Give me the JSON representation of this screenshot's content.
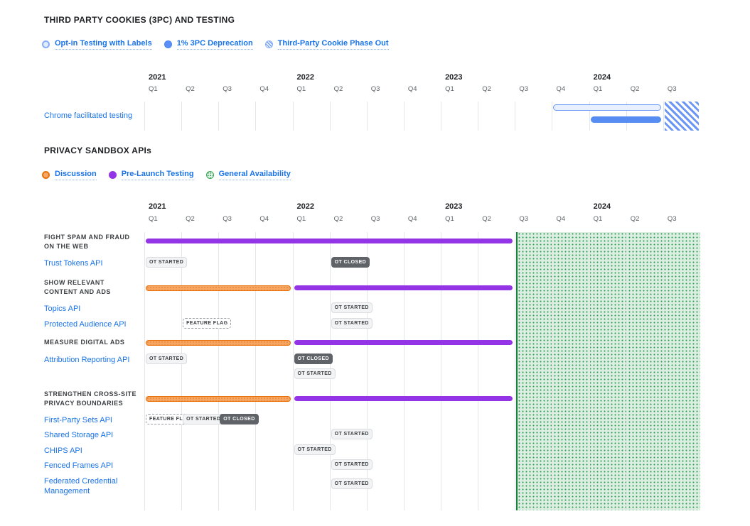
{
  "colors": {
    "link_blue": "#1a73e8",
    "heading": "#202124",
    "muted_text": "#3c4043",
    "grid_line": "#e4e6e9",
    "purple": "#9334e6",
    "orange_border": "#e8710a",
    "orange_fill": "#f7a661",
    "blue_filled_bar": "#578cf2",
    "blue_outline": "#6b9bf7",
    "blue_light_fill": "#e9f0fd",
    "hatch_blue": "#6b96f5",
    "green_fill": "#dceee1",
    "green_dot": "#2a9d52",
    "green_border": "#188038",
    "badge_light_bg": "#f1f3f4",
    "badge_dark_bg": "#5f6368"
  },
  "timeline": {
    "years": [
      {
        "label": "2021",
        "quarters": [
          "Q1",
          "Q2",
          "Q3",
          "Q4"
        ]
      },
      {
        "label": "2022",
        "quarters": [
          "Q1",
          "Q2",
          "Q3",
          "Q4"
        ]
      },
      {
        "label": "2023",
        "quarters": [
          "Q1",
          "Q2",
          "Q3",
          "Q4"
        ]
      },
      {
        "label": "2024",
        "quarters": [
          "Q1",
          "Q2",
          "Q3"
        ]
      }
    ]
  },
  "section_3pc": {
    "title": "THIRD PARTY COOKIES (3PC) AND TESTING",
    "legend": [
      {
        "label": "Opt-in Testing with Labels",
        "swatch": "outlined-blue"
      },
      {
        "label": "1% 3PC Deprecation",
        "swatch": "filled-blue"
      },
      {
        "label": "Third-Party Cookie Phase Out",
        "swatch": "hatched-blue"
      }
    ]
  },
  "section_apis": {
    "title": "PRIVACY SANDBOX APIs",
    "legend": [
      {
        "label": "Discussion",
        "swatch": "outlined-orange"
      },
      {
        "label": "Pre-Launch Testing",
        "swatch": "filled-purple"
      },
      {
        "label": "General Availability",
        "swatch": "dotted-green"
      }
    ]
  },
  "chart_data": [
    {
      "type": "gantt",
      "title": "THIRD PARTY COOKIES (3PC) AND TESTING",
      "x_quarters": [
        "2021 Q1",
        "2021 Q2",
        "2021 Q3",
        "2021 Q4",
        "2022 Q1",
        "2022 Q2",
        "2022 Q3",
        "2022 Q4",
        "2023 Q1",
        "2023 Q2",
        "2023 Q3",
        "2023 Q4",
        "2024 Q1",
        "2024 Q2",
        "2024 Q3"
      ],
      "rows": [
        {
          "label": "Chrome facilitated testing",
          "bars": [
            {
              "series": "Opt-in Testing with Labels",
              "style": "outlined-blue",
              "start": "2023 Q4",
              "end": "2024 Q2",
              "startQ": 11,
              "endQ": 14
            },
            {
              "series": "1% 3PC Deprecation",
              "style": "filled-blue",
              "start": "2024 Q1",
              "end": "2024 Q2",
              "startQ": 12,
              "endQ": 14
            },
            {
              "series": "Third-Party Cookie Phase Out",
              "style": "hatched-blue",
              "start": "2024 Q3",
              "end": "2024 Q3",
              "startQ": 14,
              "endQ": 15
            }
          ]
        }
      ]
    },
    {
      "type": "gantt",
      "title": "PRIVACY SANDBOX APIs",
      "x_quarters": [
        "2021 Q1",
        "2021 Q2",
        "2021 Q3",
        "2021 Q4",
        "2022 Q1",
        "2022 Q2",
        "2022 Q3",
        "2022 Q4",
        "2023 Q1",
        "2023 Q2",
        "2023 Q3",
        "2023 Q4",
        "2024 Q1",
        "2024 Q2",
        "2024 Q3"
      ],
      "region": {
        "series": "General Availability",
        "style": "dotted-green",
        "start": "2023 Q3",
        "end": "2024 Q3",
        "startQ": 10,
        "endQ": 15
      },
      "groups": [
        {
          "label_lines": [
            "FIGHT SPAM AND FRAUD",
            "ON THE WEB"
          ],
          "bars": [
            {
              "series": "Pre-Launch Testing",
              "style": "filled-purple",
              "start": "2021 Q1",
              "end": "2023 Q2",
              "startQ": 0,
              "endQ": 10
            }
          ],
          "rows": [
            {
              "label": "Trust Tokens API",
              "badges": [
                {
                  "text": "OT STARTED",
                  "style": "light",
                  "at": "2021 Q1",
                  "q": 0
                },
                {
                  "text": "OT CLOSED",
                  "style": "dark",
                  "at": "2022 Q2",
                  "q": 5
                }
              ]
            }
          ]
        },
        {
          "label_lines": [
            "SHOW RELEVANT",
            "CONTENT AND ADS"
          ],
          "bars": [
            {
              "series": "Discussion",
              "style": "outlined-orange",
              "start": "2021 Q1",
              "end": "2021 Q4",
              "startQ": 0,
              "endQ": 4
            },
            {
              "series": "Pre-Launch Testing",
              "style": "filled-purple",
              "start": "2022 Q1",
              "end": "2023 Q2",
              "startQ": 4,
              "endQ": 10
            }
          ],
          "rows": [
            {
              "label": "Topics API",
              "badges": [
                {
                  "text": "OT STARTED",
                  "style": "light",
                  "at": "2022 Q2",
                  "q": 5
                }
              ]
            },
            {
              "label": "Protected Audience API",
              "badges": [
                {
                  "text": "FEATURE FLAG",
                  "style": "dashed",
                  "at": "2021 Q2",
                  "q": 1
                },
                {
                  "text": "OT STARTED",
                  "style": "light",
                  "at": "2022 Q2",
                  "q": 5
                }
              ]
            }
          ]
        },
        {
          "label_lines": [
            "MEASURE DIGITAL ADS"
          ],
          "bars": [
            {
              "series": "Discussion",
              "style": "outlined-orange",
              "start": "2021 Q1",
              "end": "2021 Q4",
              "startQ": 0,
              "endQ": 4
            },
            {
              "series": "Pre-Launch Testing",
              "style": "filled-purple",
              "start": "2022 Q1",
              "end": "2023 Q2",
              "startQ": 4,
              "endQ": 10
            }
          ],
          "rows": [
            {
              "label": "Attribution Reporting API",
              "badges": [
                {
                  "text": "OT STARTED",
                  "style": "light",
                  "at": "2021 Q1",
                  "q": 0
                },
                {
                  "text": "OT CLOSED",
                  "style": "dark",
                  "at": "2022 Q1",
                  "q": 4
                },
                {
                  "text": "OT STARTED",
                  "style": "light",
                  "at": "2022 Q1",
                  "q": 4,
                  "line": 1
                }
              ]
            }
          ]
        },
        {
          "label_lines": [
            "STRENGTHEN CROSS-SITE",
            "PRIVACY BOUNDARIES"
          ],
          "bars": [
            {
              "series": "Discussion",
              "style": "outlined-orange",
              "start": "2021 Q1",
              "end": "2021 Q4",
              "startQ": 0,
              "endQ": 4
            },
            {
              "series": "Pre-Launch Testing",
              "style": "filled-purple",
              "start": "2022 Q1",
              "end": "2023 Q2",
              "startQ": 4,
              "endQ": 10
            }
          ],
          "rows": [
            {
              "label": "First-Party Sets API",
              "badges": [
                {
                  "text": "FEATURE FLAG",
                  "style": "dashed",
                  "at": "2021 Q1",
                  "q": 0
                },
                {
                  "text": "OT STARTED",
                  "style": "light",
                  "at": "2021 Q2",
                  "q": 1
                },
                {
                  "text": "OT CLOSED",
                  "style": "dark",
                  "at": "2021 Q3",
                  "q": 2
                }
              ]
            },
            {
              "label": "Shared Storage API",
              "badges": [
                {
                  "text": "OT STARTED",
                  "style": "light",
                  "at": "2022 Q2",
                  "q": 5
                }
              ]
            },
            {
              "label": "CHIPS API",
              "badges": [
                {
                  "text": "OT STARTED",
                  "style": "light",
                  "at": "2022 Q1",
                  "q": 4
                }
              ]
            },
            {
              "label": "Fenced Frames API",
              "badges": [
                {
                  "text": "OT STARTED",
                  "style": "light",
                  "at": "2022 Q2",
                  "q": 5
                }
              ]
            },
            {
              "label": [
                "Federated Credential",
                "Management"
              ],
              "badges": [
                {
                  "text": "OT STARTED",
                  "style": "light",
                  "at": "2022 Q2",
                  "q": 5
                }
              ]
            }
          ]
        }
      ]
    }
  ]
}
